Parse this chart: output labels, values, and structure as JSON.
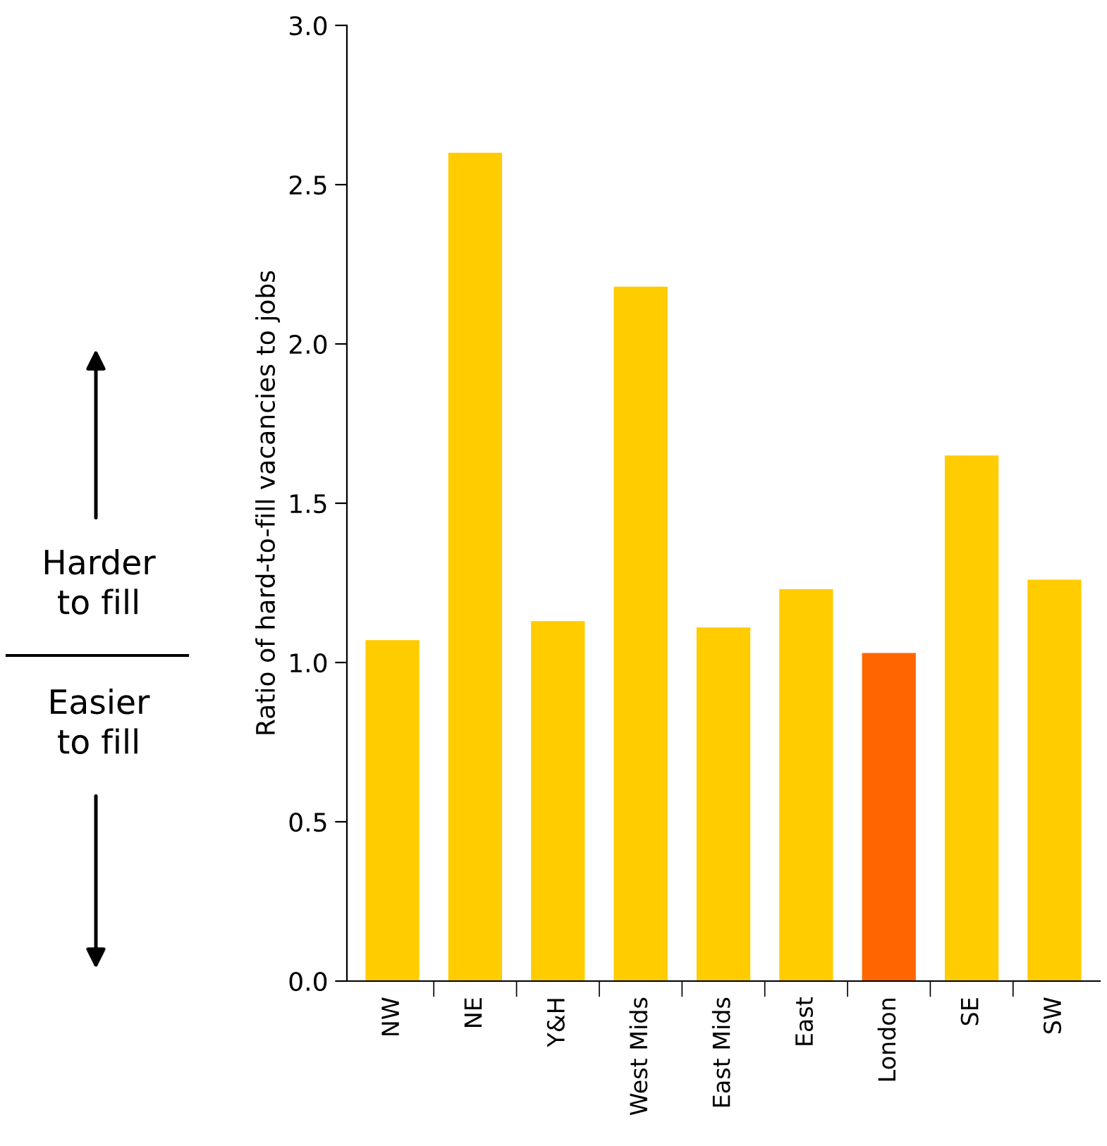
{
  "chart_data": {
    "type": "bar",
    "ylabel": "Ratio of hard-to-fill vacancies to jobs",
    "categories": [
      "NW",
      "NE",
      "Y&H",
      "West Mids",
      "East Mids",
      "East",
      "London",
      "SE",
      "SW"
    ],
    "values": [
      1.07,
      2.6,
      1.13,
      2.18,
      1.11,
      1.23,
      1.03,
      1.65,
      1.26
    ],
    "colors": [
      "#ffcc00",
      "#ffcc00",
      "#ffcc00",
      "#ffcc00",
      "#ffcc00",
      "#ffcc00",
      "#ff6600",
      "#ffcc00",
      "#ffcc00"
    ],
    "ylim": [
      0,
      3.0
    ],
    "yticks": [
      {
        "value": 0,
        "label": "0.0"
      },
      0.5,
      {
        "value": 1,
        "label": "1.0"
      },
      1.5,
      {
        "value": 2,
        "label": "2.0"
      },
      2.5,
      {
        "value": 3,
        "label": "3.0"
      }
    ],
    "grid": false,
    "legend": false,
    "annotations": [
      "Harder\nto fill",
      "Easier\nto fill"
    ]
  }
}
